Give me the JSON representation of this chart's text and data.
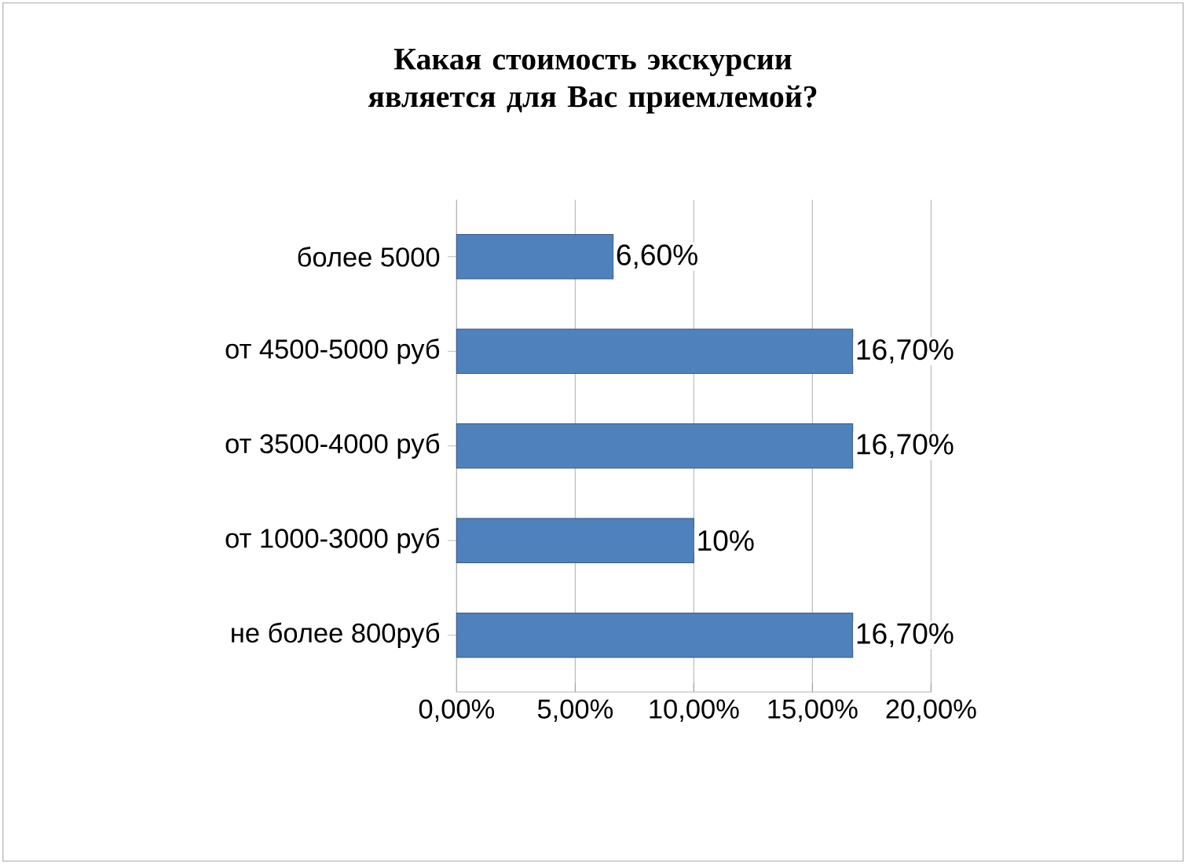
{
  "chart_data": {
    "type": "bar",
    "orientation": "horizontal",
    "title": "Какая стоимость экскурсии является для Вас приемлемой?",
    "categories": [
      "более 5000",
      "от 4500-5000 руб",
      "от 3500-4000 руб",
      "от 1000-3000 руб",
      "не более 800руб"
    ],
    "values": [
      6.6,
      16.7,
      16.7,
      10,
      16.7
    ],
    "value_labels": [
      "6,60%",
      "16,70%",
      "16,70%",
      "10%",
      "16,70%"
    ],
    "color": "#4f81bd",
    "xlim": [
      0,
      20
    ],
    "xticks": [
      {
        "value": 0,
        "label": "0,00%"
      },
      {
        "value": 5,
        "label": "5,00%"
      },
      {
        "value": 10,
        "label": "10,00%"
      },
      {
        "value": 15,
        "label": "15,00%"
      },
      {
        "value": 20,
        "label": "20,00%"
      }
    ],
    "grid": "x"
  }
}
